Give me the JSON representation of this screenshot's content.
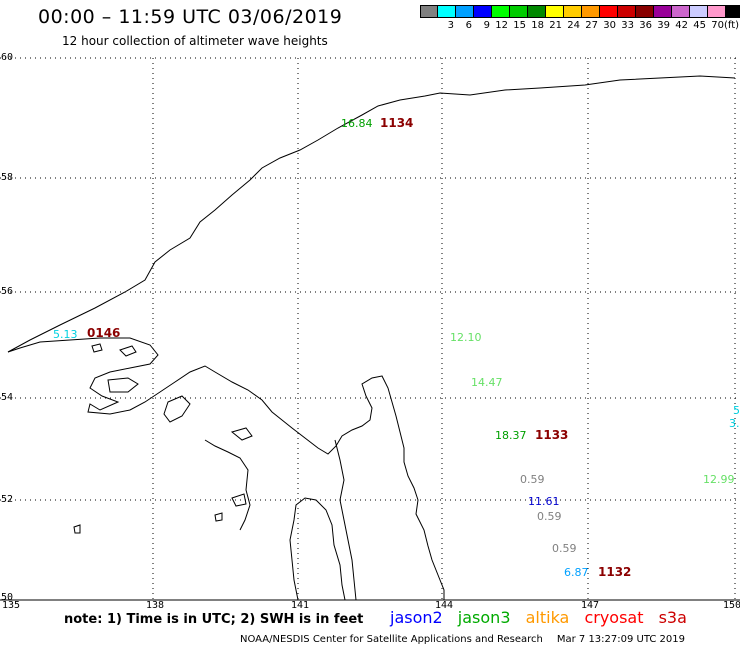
{
  "header": {
    "title": "00:00 – 11:59 UTC 03/06/2019",
    "subtitle": "12 hour collection of altimeter wave heights"
  },
  "legend": {
    "colors": [
      "#808080",
      "#00ffff",
      "#00a0ff",
      "#0000ff",
      "#00ff00",
      "#00cc00",
      "#008800",
      "#ffff00",
      "#ffcc00",
      "#ff9900",
      "#ff0000",
      "#cc0000",
      "#880000",
      "#990099",
      "#cc66cc",
      "#ccccff",
      "#ff99cc",
      "#000000"
    ],
    "labels": [
      "",
      "3",
      "6",
      "9",
      "12",
      "15",
      "18",
      "21",
      "24",
      "27",
      "30",
      "33",
      "36",
      "39",
      "42",
      "45",
      "70",
      ""
    ],
    "unit": "(ft)"
  },
  "axes": {
    "y_labels": [
      "60",
      "58",
      "56",
      "54",
      "52",
      "50"
    ],
    "x_labels": [
      "135",
      "138",
      "141",
      "144",
      "147",
      "150"
    ]
  },
  "observations": [
    {
      "value": "16.84",
      "color": "#00a000"
    },
    {
      "value": "5.13",
      "color": "#00d0e0"
    },
    {
      "value": "12.10",
      "color": "#66e066"
    },
    {
      "value": "14.47",
      "color": "#66e066"
    },
    {
      "value": "18.37",
      "color": "#00a000"
    },
    {
      "value": "0.59",
      "color": "#808080"
    },
    {
      "value": "11.61",
      "color": "#0000cc"
    },
    {
      "value": "0.59",
      "color": "#808080"
    },
    {
      "value": "0.59",
      "color": "#808080"
    },
    {
      "value": "6.87",
      "color": "#00a0ff"
    },
    {
      "value": "12.99",
      "color": "#66e066"
    },
    {
      "value": "5",
      "color": "#00d0e0"
    },
    {
      "value": "3.",
      "color": "#00d0e0"
    }
  ],
  "passes": [
    "1134",
    "0146",
    "1133",
    "1132"
  ],
  "footer": {
    "note": "note: 1) Time is in UTC; 2) SWH is in feet",
    "satellites": [
      {
        "name": "jason2",
        "color": "#0000ff"
      },
      {
        "name": "jason3",
        "color": "#00aa00"
      },
      {
        "name": "altika",
        "color": "#ff9900"
      },
      {
        "name": "cryosat",
        "color": "#ff0000"
      },
      {
        "name": "s3a",
        "color": "#cc0000"
      }
    ],
    "credit": "NOAA/NESDIS Center for Satellite Applications and Research",
    "timestamp": "Mar  7 13:27:09 UTC 2019"
  }
}
